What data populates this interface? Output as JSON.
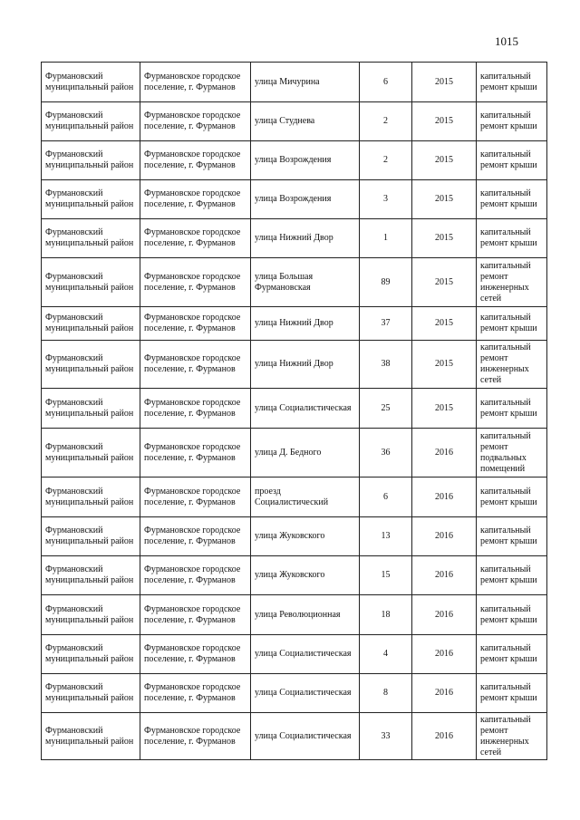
{
  "page_number": "1015",
  "rows": [
    {
      "district": "Фурмановский муниципальный район",
      "settlement": "Фурмановское городское поселение, г. Фурманов",
      "street": "улица Мичурина",
      "house": "6",
      "year": "2015",
      "work": "капитальный ремонт крыши",
      "h": 44
    },
    {
      "district": "Фурмановский муниципальный район",
      "settlement": "Фурмановское городское поселение, г. Фурманов",
      "street": "улица  Студнева",
      "house": "2",
      "year": "2015",
      "work": "капитальный ремонт крыши",
      "h": 43
    },
    {
      "district": "Фурмановский муниципальный район",
      "settlement": "Фурмановское городское поселение, г. Фурманов",
      "street": "улица Возрождения",
      "house": "2",
      "year": "2015",
      "work": "капитальный ремонт крыши",
      "h": 43
    },
    {
      "district": "Фурмановский муниципальный район",
      "settlement": "Фурмановское городское поселение, г. Фурманов",
      "street": "улица Возрождения",
      "house": "3",
      "year": "2015",
      "work": "капитальный ремонт крыши",
      "h": 43
    },
    {
      "district": "Фурмановский муниципальный район",
      "settlement": "Фурмановское городское поселение, г. Фурманов",
      "street": "улица Нижний Двор",
      "house": "1",
      "year": "2015",
      "work": "капитальный ремонт крыши",
      "h": 43
    },
    {
      "district": "Фурмановский муниципальный район",
      "settlement": "Фурмановское городское поселение, г. Фурманов",
      "street": "улица  Большая Фурмановская",
      "house": "89",
      "year": "2015",
      "work": "капитальный ремонт инженерных сетей",
      "h": 54
    },
    {
      "district": "Фурмановский муниципальный район",
      "settlement": "Фурмановское городское поселение, г. Фурманов",
      "street": "улица Нижний Двор",
      "house": "37",
      "year": "2015",
      "work": "капитальный ремонт крыши",
      "h": 37
    },
    {
      "district": "Фурмановский муниципальный район",
      "settlement": "Фурмановское городское поселение, г. Фурманов",
      "street": "улица Нижний Двор",
      "house": "38",
      "year": "2015",
      "work": "капитальный ремонт инженерных сетей",
      "h": 53
    },
    {
      "district": "Фурмановский муниципальный район",
      "settlement": "Фурмановское городское поселение, г. Фурманов",
      "street": "улица Социалистическая",
      "house": "25",
      "year": "2015",
      "work": "капитальный ремонт крыши",
      "h": 44
    },
    {
      "district": "Фурмановский муниципальный район",
      "settlement": "Фурмановское городское поселение, г. Фурманов",
      "street": "улица Д. Бедного",
      "house": "36",
      "year": "2016",
      "work": "капитальный ремонт подвальных помещений",
      "h": 54
    },
    {
      "district": "Фурмановский муниципальный район",
      "settlement": "Фурмановское городское поселение, г. Фурманов",
      "street": "проезд Социалистический",
      "house": "6",
      "year": "2016",
      "work": "капитальный ремонт крыши",
      "h": 44
    },
    {
      "district": "Фурмановский муниципальный район",
      "settlement": "Фурмановское городское поселение, г. Фурманов",
      "street": "улица  Жуковского",
      "house": "13",
      "year": "2016",
      "work": "капитальный ремонт крыши",
      "h": 43
    },
    {
      "district": "Фурмановский муниципальный район",
      "settlement": "Фурмановское городское поселение, г. Фурманов",
      "street": "улица  Жуковского",
      "house": "15",
      "year": "2016",
      "work": "капитальный ремонт крыши",
      "h": 43
    },
    {
      "district": "Фурмановский муниципальный район",
      "settlement": "Фурмановское городское поселение, г. Фурманов",
      "street": "улица  Революционная",
      "house": "18",
      "year": "2016",
      "work": "капитальный ремонт крыши",
      "h": 44
    },
    {
      "district": "Фурмановский муниципальный район",
      "settlement": "Фурмановское городское поселение, г. Фурманов",
      "street": "улица Социалистическая",
      "house": "4",
      "year": "2016",
      "work": "капитальный ремонт крыши",
      "h": 43
    },
    {
      "district": "Фурмановский муниципальный район",
      "settlement": "Фурмановское городское поселение, г. Фурманов",
      "street": "улица Социалистическая",
      "house": "8",
      "year": "2016",
      "work": "капитальный ремонт крыши",
      "h": 43
    },
    {
      "district": "Фурмановский муниципальный район",
      "settlement": "Фурмановское городское поселение, г. Фурманов",
      "street": "улица Социалистическая",
      "house": "33",
      "year": "2016",
      "work": "капитальный ремонт инженерных сетей",
      "h": 52
    }
  ]
}
